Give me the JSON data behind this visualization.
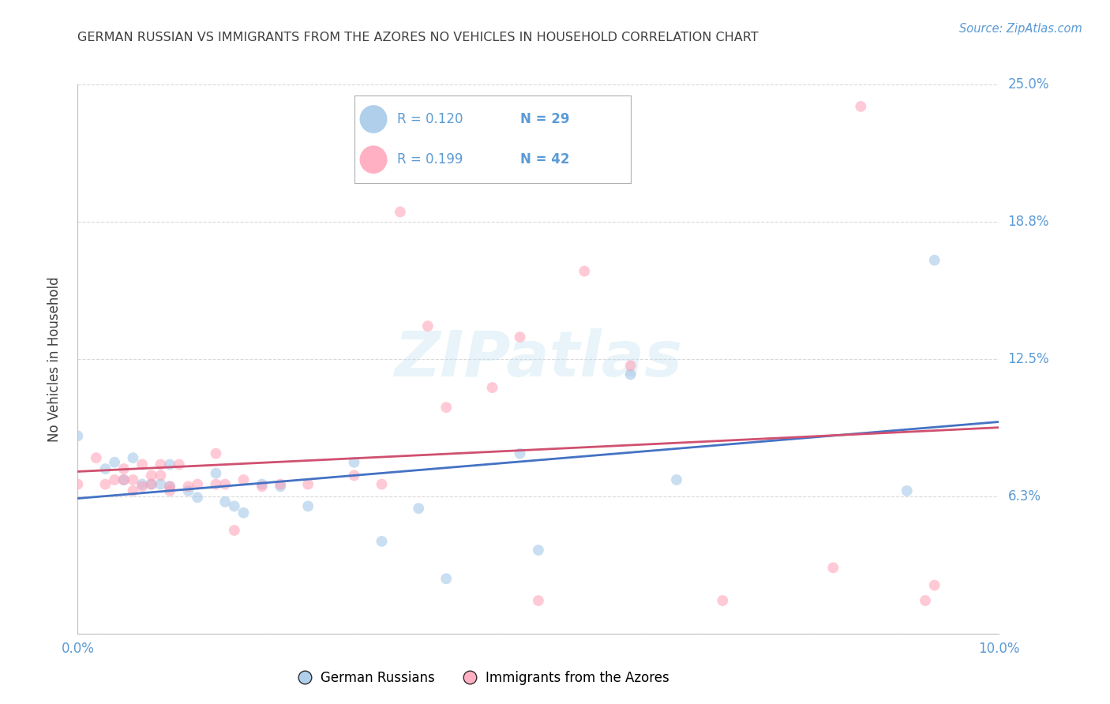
{
  "title": "GERMAN RUSSIAN VS IMMIGRANTS FROM THE AZORES NO VEHICLES IN HOUSEHOLD CORRELATION CHART",
  "source": "Source: ZipAtlas.com",
  "ylabel": "No Vehicles in Household",
  "xlim": [
    0.0,
    0.1
  ],
  "ylim": [
    0.0,
    0.25
  ],
  "ytick_vals": [
    0.0,
    0.0625,
    0.125,
    0.1875,
    0.25
  ],
  "ytick_labels": [
    "",
    "6.3%",
    "12.5%",
    "18.8%",
    "25.0%"
  ],
  "xtick_vals": [
    0.0,
    0.02,
    0.04,
    0.06,
    0.08,
    0.1
  ],
  "xtick_labels": [
    "0.0%",
    "",
    "",
    "",
    "",
    "10.0%"
  ],
  "background_color": "#ffffff",
  "watermark": "ZIPatlas",
  "title_color": "#3f3f3f",
  "axis_label_color": "#404040",
  "tick_label_color": "#5b9bd5",
  "source_color": "#5b9bd5",
  "blue_color": "#9dc3e6",
  "pink_color": "#ff9eb5",
  "blue_line_color": "#4472c4",
  "pink_line_color": "#d05070",
  "legend_r1": "R = 0.120",
  "legend_n1": "N = 29",
  "legend_r2": "R = 0.199",
  "legend_n2": "N = 42",
  "german_russian_x": [
    0.0,
    0.003,
    0.004,
    0.005,
    0.006,
    0.007,
    0.008,
    0.009,
    0.01,
    0.01,
    0.012,
    0.013,
    0.015,
    0.016,
    0.017,
    0.018,
    0.02,
    0.022,
    0.025,
    0.03,
    0.033,
    0.037,
    0.04,
    0.048,
    0.05,
    0.06,
    0.065,
    0.09,
    0.093
  ],
  "german_russian_y": [
    0.09,
    0.075,
    0.078,
    0.07,
    0.08,
    0.068,
    0.068,
    0.068,
    0.067,
    0.077,
    0.065,
    0.062,
    0.073,
    0.06,
    0.058,
    0.055,
    0.068,
    0.067,
    0.058,
    0.078,
    0.042,
    0.057,
    0.025,
    0.082,
    0.038,
    0.118,
    0.07,
    0.065,
    0.17
  ],
  "azores_x": [
    0.0,
    0.002,
    0.003,
    0.004,
    0.005,
    0.005,
    0.006,
    0.006,
    0.007,
    0.007,
    0.008,
    0.008,
    0.009,
    0.009,
    0.01,
    0.01,
    0.011,
    0.012,
    0.013,
    0.015,
    0.015,
    0.016,
    0.017,
    0.018,
    0.02,
    0.022,
    0.025,
    0.03,
    0.033,
    0.035,
    0.038,
    0.04,
    0.045,
    0.05,
    0.06,
    0.085,
    0.093,
    0.048,
    0.055,
    0.07,
    0.082,
    0.092
  ],
  "azores_y": [
    0.068,
    0.08,
    0.068,
    0.07,
    0.07,
    0.075,
    0.065,
    0.07,
    0.067,
    0.077,
    0.068,
    0.072,
    0.072,
    0.077,
    0.065,
    0.067,
    0.077,
    0.067,
    0.068,
    0.068,
    0.082,
    0.068,
    0.047,
    0.07,
    0.067,
    0.068,
    0.068,
    0.072,
    0.068,
    0.192,
    0.14,
    0.103,
    0.112,
    0.015,
    0.122,
    0.24,
    0.022,
    0.135,
    0.165,
    0.015,
    0.03,
    0.015
  ],
  "marker_size": 100,
  "alpha": 0.55,
  "grid_color": "#d0d0d0",
  "grid_alpha": 0.8
}
